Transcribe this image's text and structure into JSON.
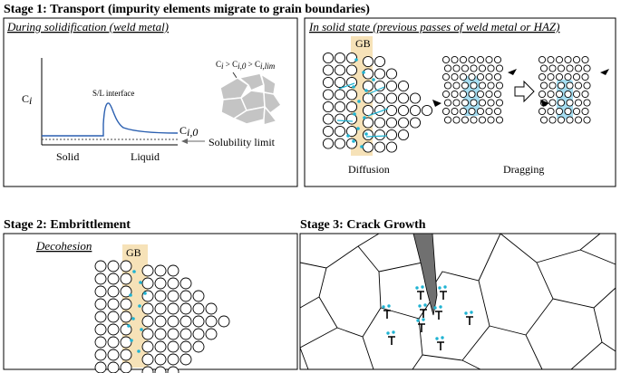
{
  "stage1": {
    "header": "Stage 1: Transport (impurity elements migrate to grain boundaries)",
    "left_title": "During solidification (weld metal)",
    "right_title": "In solid state (previous passes of weld metal or HAZ)",
    "y_label": "C",
    "y_label_sub": "i",
    "interface_label": "S/L interface",
    "ci0_label": "C",
    "ci0_sub": "i,0",
    "solubility_label": "Solubility limit",
    "solid_label": "Solid",
    "liquid_label": "Liquid",
    "inequality": {
      "a": "C",
      "a_sub": "i",
      "gt1": " > C",
      "b_sub": "i,0",
      "gt2": " > C",
      "c_sub": "i,lim"
    },
    "gb_label": "GB",
    "diffusion_label": "Diffusion",
    "dragging_label": "Dragging"
  },
  "stage2": {
    "header": "Stage 2: Embrittlement",
    "title": "Decohesion",
    "gb_label": "GB"
  },
  "stage3": {
    "header": "Stage 3: Crack Growth"
  },
  "colors": {
    "gb_band": "#f6e2b8",
    "impurity": "#1fb3d2",
    "dragging_band": "#a6def2",
    "grain_fill": "#c4c4c4",
    "crack_fill": "#707070"
  }
}
